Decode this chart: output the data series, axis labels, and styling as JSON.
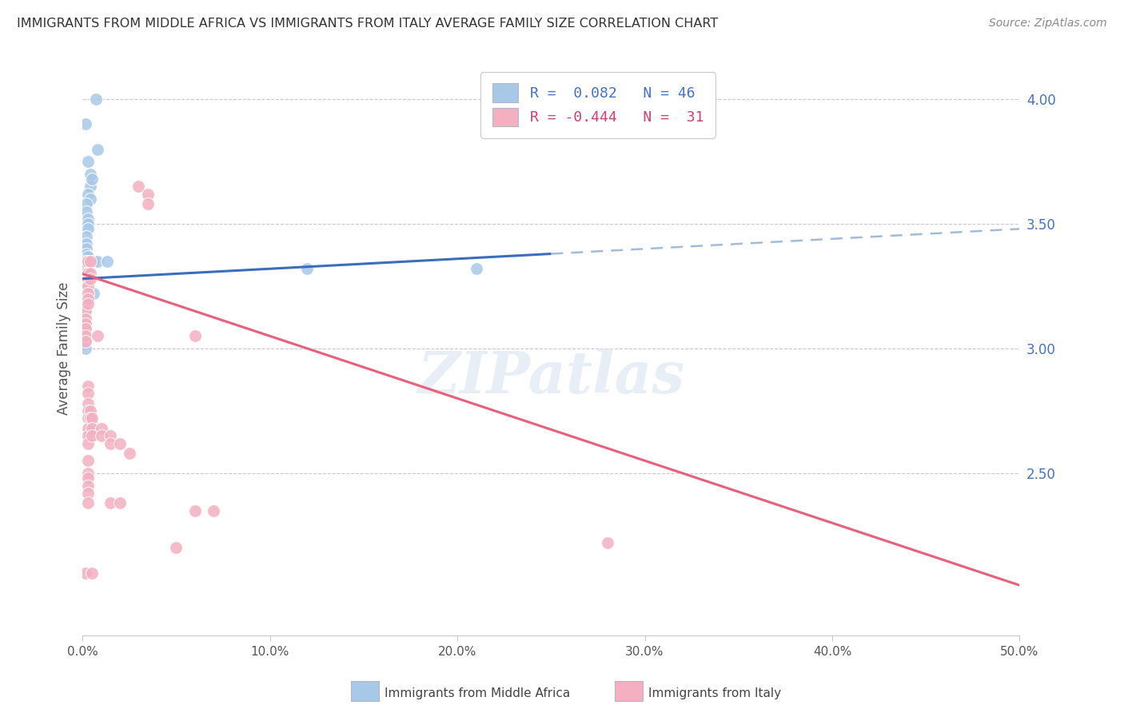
{
  "title": "IMMIGRANTS FROM MIDDLE AFRICA VS IMMIGRANTS FROM ITALY AVERAGE FAMILY SIZE CORRELATION CHART",
  "source": "Source: ZipAtlas.com",
  "ylabel": "Average Family Size",
  "right_yticks": [
    2.5,
    3.0,
    3.5,
    4.0
  ],
  "blue_r": "0.082",
  "blue_n": "46",
  "pink_r": "-0.444",
  "pink_n": "31",
  "legend_label_blue": "Immigrants from Middle Africa",
  "legend_label_pink": "Immigrants from Italy",
  "blue_color": "#a8c8e8",
  "pink_color": "#f4b0c0",
  "blue_line_color": "#3a6dbd",
  "pink_line_color": "#e8607a",
  "blue_dots": [
    [
      0.0015,
      3.9
    ],
    [
      0.003,
      3.75
    ],
    [
      0.007,
      4.0
    ],
    [
      0.008,
      3.8
    ],
    [
      0.004,
      3.7
    ],
    [
      0.004,
      3.65
    ],
    [
      0.005,
      3.68
    ],
    [
      0.003,
      3.62
    ],
    [
      0.004,
      3.6
    ],
    [
      0.002,
      3.58
    ],
    [
      0.002,
      3.55
    ],
    [
      0.003,
      3.52
    ],
    [
      0.003,
      3.5
    ],
    [
      0.003,
      3.48
    ],
    [
      0.002,
      3.45
    ],
    [
      0.002,
      3.42
    ],
    [
      0.002,
      3.4
    ],
    [
      0.002,
      3.38
    ],
    [
      0.003,
      3.37
    ],
    [
      0.003,
      3.35
    ],
    [
      0.003,
      3.34
    ],
    [
      0.003,
      3.32
    ],
    [
      0.003,
      3.3
    ],
    [
      0.0015,
      3.3
    ],
    [
      0.002,
      3.28
    ],
    [
      0.002,
      3.27
    ],
    [
      0.002,
      3.25
    ],
    [
      0.002,
      3.23
    ],
    [
      0.002,
      3.22
    ],
    [
      0.0015,
      3.2
    ],
    [
      0.0015,
      3.18
    ],
    [
      0.0015,
      3.15
    ],
    [
      0.0015,
      3.12
    ],
    [
      0.0015,
      3.1
    ],
    [
      0.0015,
      3.08
    ],
    [
      0.0015,
      3.05
    ],
    [
      0.0015,
      3.03
    ],
    [
      0.0015,
      3.0
    ],
    [
      0.005,
      3.35
    ],
    [
      0.006,
      3.35
    ],
    [
      0.006,
      3.22
    ],
    [
      0.008,
      3.35
    ],
    [
      0.013,
      3.35
    ],
    [
      0.12,
      3.32
    ],
    [
      0.21,
      3.32
    ],
    [
      0.005,
      2.7
    ]
  ],
  "pink_dots": [
    [
      0.0015,
      3.35
    ],
    [
      0.0015,
      3.32
    ],
    [
      0.0015,
      3.3
    ],
    [
      0.0015,
      3.28
    ],
    [
      0.0015,
      3.25
    ],
    [
      0.0015,
      3.22
    ],
    [
      0.0015,
      3.2
    ],
    [
      0.0015,
      3.18
    ],
    [
      0.0015,
      3.15
    ],
    [
      0.0015,
      3.12
    ],
    [
      0.0015,
      3.1
    ],
    [
      0.0015,
      3.08
    ],
    [
      0.0015,
      3.05
    ],
    [
      0.0015,
      3.03
    ],
    [
      0.003,
      3.35
    ],
    [
      0.003,
      3.3
    ],
    [
      0.003,
      3.28
    ],
    [
      0.003,
      3.25
    ],
    [
      0.003,
      3.22
    ],
    [
      0.003,
      3.2
    ],
    [
      0.003,
      3.18
    ],
    [
      0.004,
      3.35
    ],
    [
      0.004,
      3.3
    ],
    [
      0.004,
      3.28
    ],
    [
      0.03,
      3.65
    ],
    [
      0.035,
      3.62
    ],
    [
      0.035,
      3.58
    ],
    [
      0.003,
      2.85
    ],
    [
      0.003,
      2.82
    ],
    [
      0.003,
      2.78
    ],
    [
      0.003,
      2.75
    ],
    [
      0.003,
      2.72
    ],
    [
      0.003,
      2.68
    ],
    [
      0.003,
      2.65
    ],
    [
      0.003,
      2.62
    ],
    [
      0.003,
      2.55
    ],
    [
      0.003,
      2.5
    ],
    [
      0.003,
      2.48
    ],
    [
      0.003,
      2.45
    ],
    [
      0.003,
      2.42
    ],
    [
      0.003,
      2.38
    ],
    [
      0.008,
      3.05
    ],
    [
      0.06,
      3.05
    ],
    [
      0.004,
      2.75
    ],
    [
      0.004,
      2.72
    ],
    [
      0.005,
      2.72
    ],
    [
      0.005,
      2.68
    ],
    [
      0.005,
      2.65
    ],
    [
      0.01,
      2.68
    ],
    [
      0.01,
      2.65
    ],
    [
      0.015,
      2.65
    ],
    [
      0.015,
      2.62
    ],
    [
      0.02,
      2.62
    ],
    [
      0.025,
      2.58
    ],
    [
      0.015,
      2.38
    ],
    [
      0.02,
      2.38
    ],
    [
      0.06,
      2.35
    ],
    [
      0.07,
      2.35
    ],
    [
      0.28,
      2.22
    ],
    [
      0.05,
      2.2
    ],
    [
      0.0015,
      2.1
    ],
    [
      0.005,
      2.1
    ]
  ],
  "xlim": [
    0.0,
    0.5
  ],
  "ylim": [
    1.85,
    4.15
  ],
  "blue_trend": [
    0.0,
    0.5,
    3.28,
    3.48
  ],
  "pink_trend": [
    0.0,
    0.5,
    3.3,
    2.05
  ],
  "dash_trend": [
    0.07,
    0.5,
    3.5,
    3.72
  ],
  "xticks": [
    0.0,
    0.1,
    0.2,
    0.3,
    0.4,
    0.5
  ],
  "xticklabels": [
    "0.0%",
    "10.0%",
    "20.0%",
    "30.0%",
    "40.0%",
    "50.0%"
  ]
}
